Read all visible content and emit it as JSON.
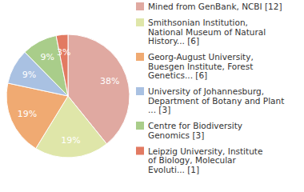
{
  "chart_data": {
    "type": "pie",
    "categories": [
      "Mined from GenBank, NCBI [12]",
      "Smithsonian Institution,\nNational Museum of Natural\nHistory... [6]",
      "Georg-August University,\nBuesgen Institute, Forest\nGenetics... [6]",
      "University of Johannesburg,\nDepartment of Botany and Plant\n... [3]",
      "Centre for Biodiversity\nGenomics [3]",
      "Leipzig University, Institute\nof Biology, Molecular\nEvoluti... [1]"
    ],
    "values": [
      38,
      19,
      19,
      9,
      9,
      3
    ],
    "value_labels": [
      "38%",
      "19%",
      "19%",
      "9%",
      "9%",
      "3%"
    ],
    "colors": [
      "#e0a9a1",
      "#dfe6a9",
      "#f0aa72",
      "#a9c1e2",
      "#a9cd8a",
      "#e27a62"
    ],
    "data_labels": true,
    "legend": "right"
  }
}
